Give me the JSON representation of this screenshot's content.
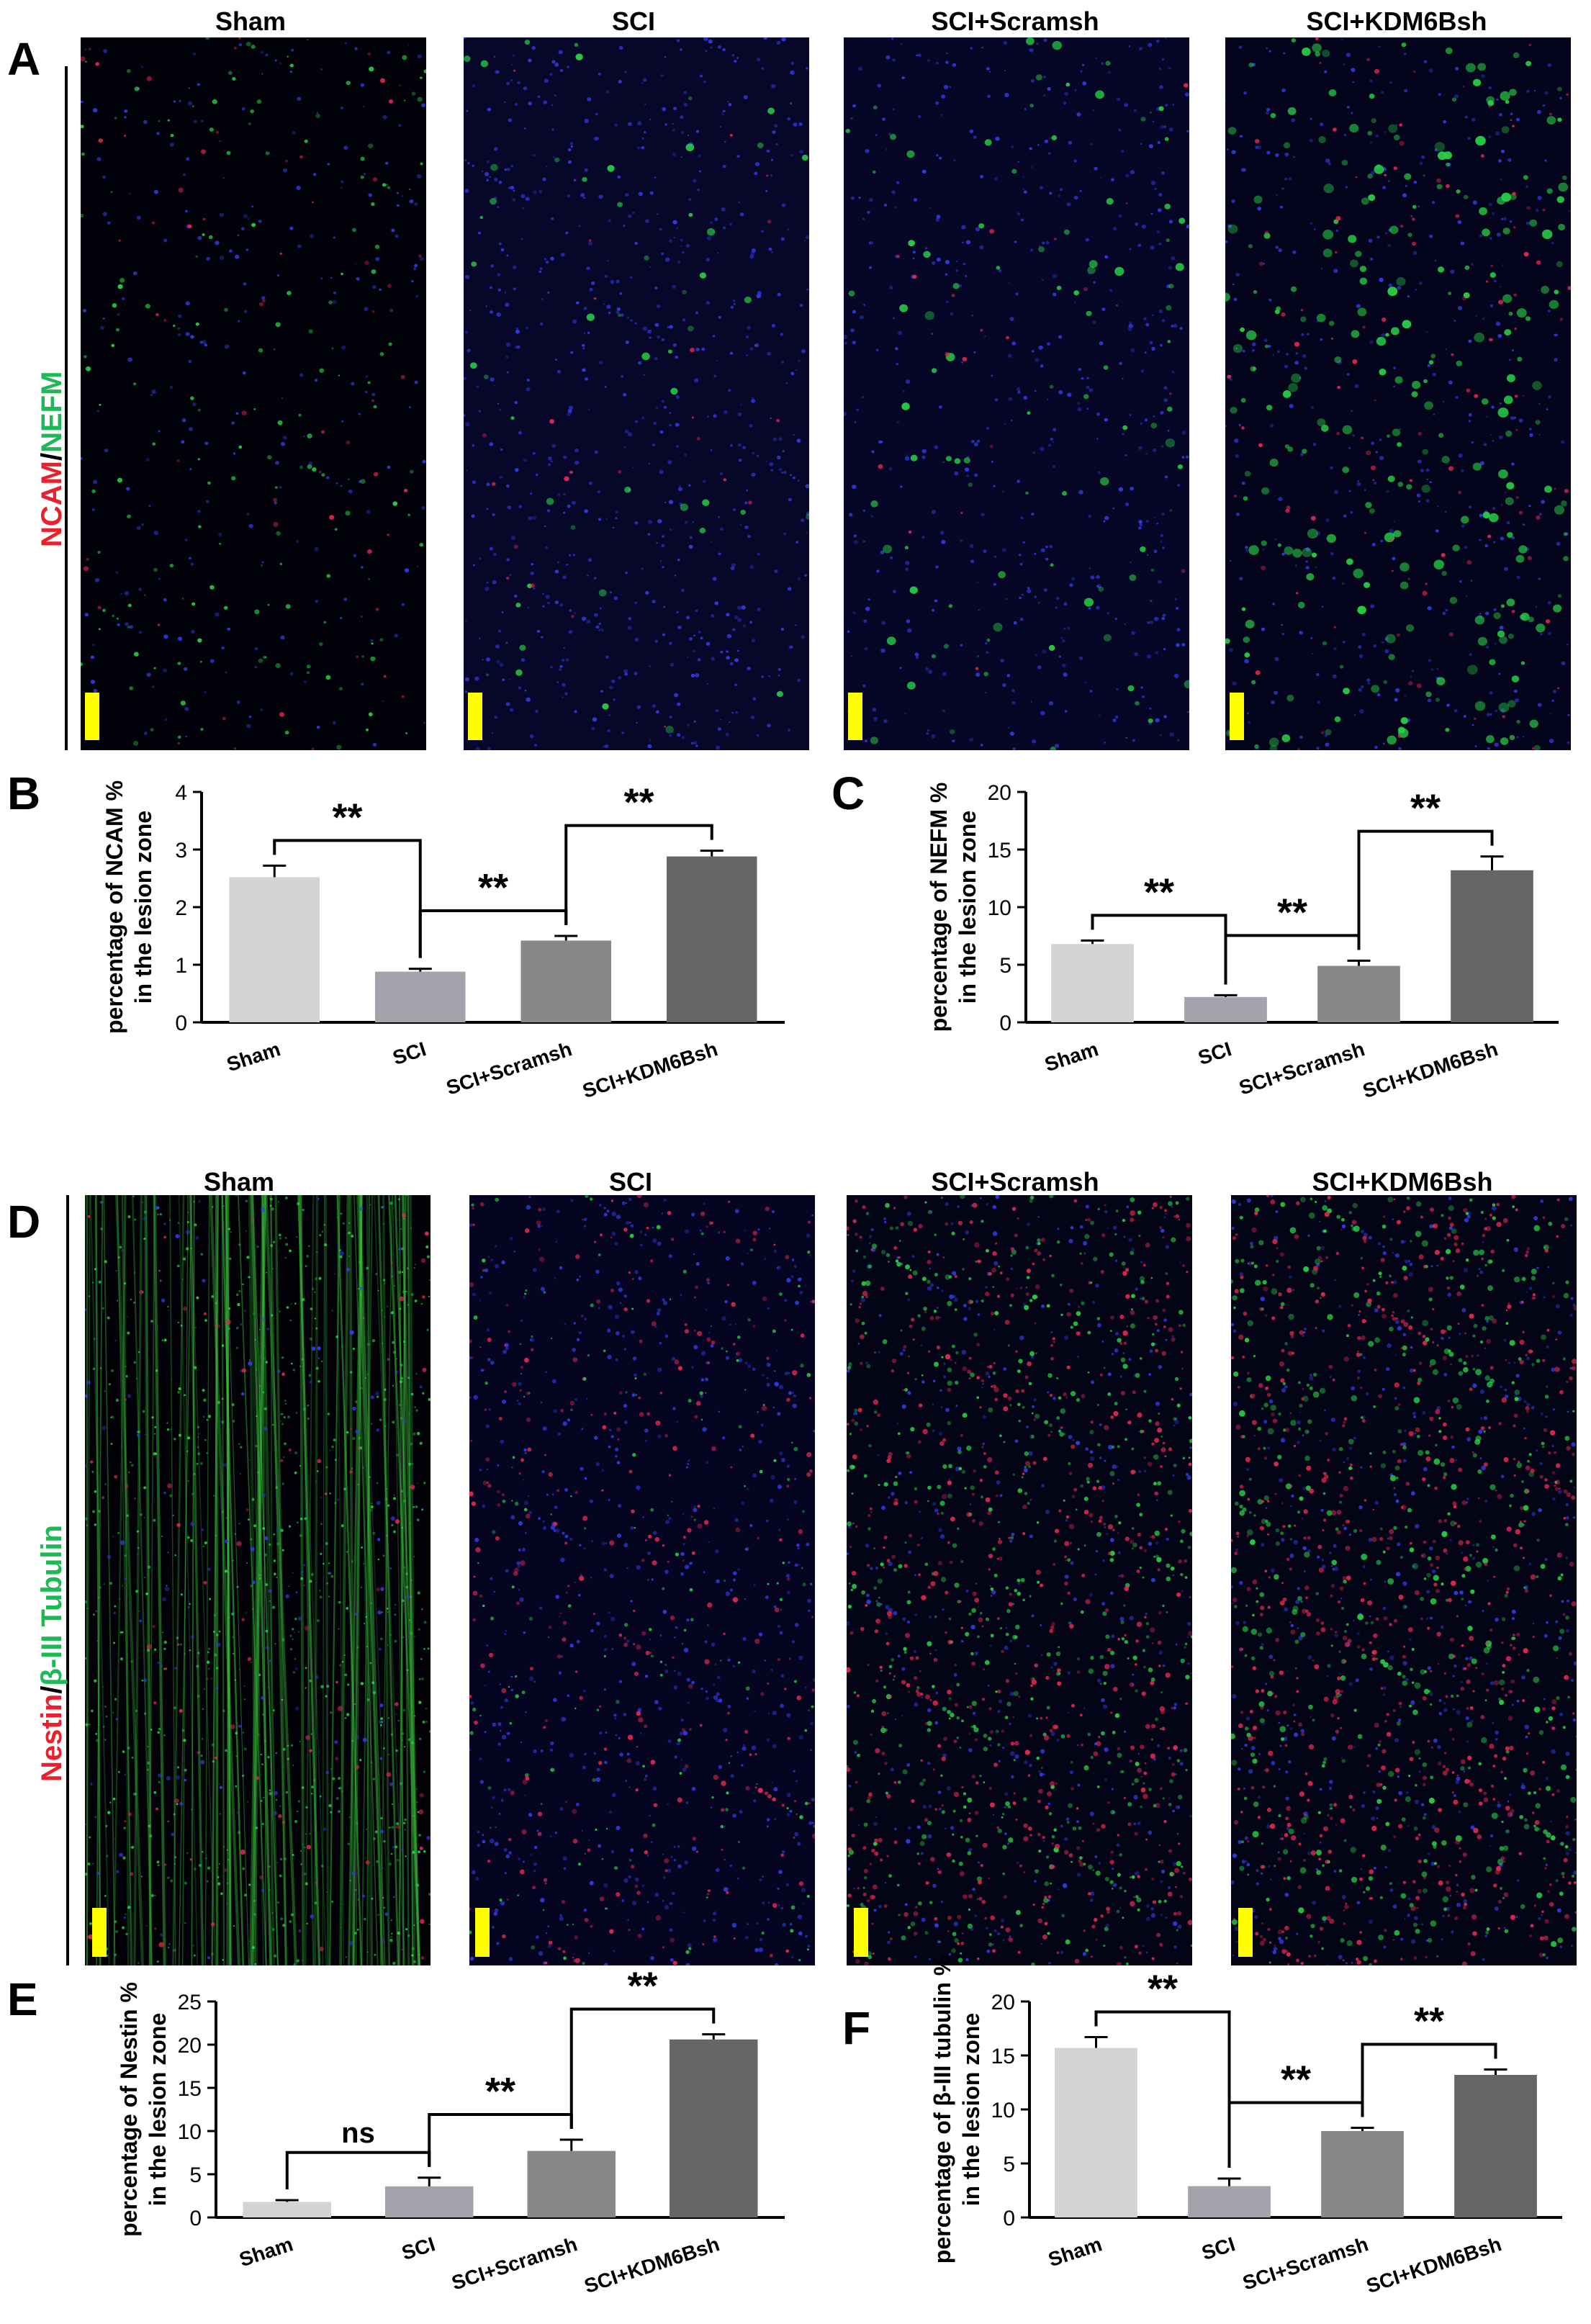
{
  "panels": {
    "A": "A",
    "B": "B",
    "C": "C",
    "D": "D",
    "E": "E",
    "F": "F"
  },
  "groups": [
    "Sham",
    "SCI",
    "SCI+Scramsh",
    "SCI+KDM6Bsh"
  ],
  "rowA": {
    "label_red": "NCAM",
    "label_sep": "/",
    "label_green": "NEFM",
    "titles": [
      "Sham",
      "SCI",
      "SCI+Scramsh",
      "SCI+KDM6Bsh"
    ]
  },
  "rowD": {
    "label_red": "Nestin",
    "label_sep": "/",
    "label_green": "β-III Tubulin",
    "titles": [
      "Sham",
      "SCI",
      "SCI+Scramsh",
      "SCI+KDM6Bsh"
    ]
  },
  "colors": {
    "red": "#e8212c",
    "green": "#1db954",
    "scale_bar": "#ffff00",
    "bar_fills": [
      "#d3d3d3",
      "#a3a3ab",
      "#888888",
      "#666666"
    ]
  },
  "chart_data": [
    {
      "id": "B",
      "type": "bar",
      "categories": [
        "Sham",
        "SCI",
        "SCI+Scramsh",
        "SCI+KDM6Bsh"
      ],
      "values": [
        2.52,
        0.88,
        1.42,
        2.88
      ],
      "errors": [
        0.2,
        0.05,
        0.08,
        0.1
      ],
      "ylabel": "percentage of NCAM %\nin the lesion zone",
      "ylim": [
        0,
        4
      ],
      "yticks": [
        0,
        1,
        2,
        3,
        4
      ],
      "brackets": [
        {
          "from": 0,
          "to": 1,
          "label": "**"
        },
        {
          "from": 1,
          "to": 2,
          "label": "**"
        },
        {
          "from": 2,
          "to": 3,
          "label": "**"
        }
      ]
    },
    {
      "id": "C",
      "type": "bar",
      "categories": [
        "Sham",
        "SCI",
        "SCI+Scramsh",
        "SCI+KDM6Bsh"
      ],
      "values": [
        6.8,
        2.2,
        4.9,
        13.2
      ],
      "errors": [
        0.3,
        0.15,
        0.45,
        1.2
      ],
      "ylabel": "percentage of NEFM %\nin the lesion zone",
      "ylim": [
        0,
        20
      ],
      "yticks": [
        0,
        5,
        10,
        15,
        20
      ],
      "brackets": [
        {
          "from": 0,
          "to": 1,
          "label": "**"
        },
        {
          "from": 1,
          "to": 2,
          "label": "**"
        },
        {
          "from": 2,
          "to": 3,
          "label": "**"
        }
      ]
    },
    {
      "id": "E",
      "type": "bar",
      "categories": [
        "Sham",
        "SCI",
        "SCI+Scramsh",
        "SCI+KDM6Bsh"
      ],
      "values": [
        1.8,
        3.6,
        7.7,
        20.6
      ],
      "errors": [
        0.2,
        1.0,
        1.3,
        0.6
      ],
      "ylabel": "percentage of Nestin %\nin the lesion zone",
      "ylim": [
        0,
        25
      ],
      "yticks": [
        0,
        5,
        10,
        15,
        20,
        25
      ],
      "brackets": [
        {
          "from": 0,
          "to": 1,
          "label": "ns"
        },
        {
          "from": 1,
          "to": 2,
          "label": "**"
        },
        {
          "from": 2,
          "to": 3,
          "label": "**"
        }
      ]
    },
    {
      "id": "F",
      "type": "bar",
      "categories": [
        "Sham",
        "SCI",
        "SCI+Scramsh",
        "SCI+KDM6Bsh"
      ],
      "values": [
        15.7,
        2.9,
        8.0,
        13.2
      ],
      "errors": [
        1.0,
        0.7,
        0.3,
        0.5
      ],
      "ylabel": "percentage of β-III tubulin %\nin the lesion zone",
      "ylim": [
        0,
        20
      ],
      "yticks": [
        0,
        5,
        10,
        15,
        20
      ],
      "brackets": [
        {
          "from": 0,
          "to": 1,
          "label": "**"
        },
        {
          "from": 1,
          "to": 2,
          "label": "**"
        },
        {
          "from": 2,
          "to": 3,
          "label": "**"
        }
      ]
    }
  ]
}
